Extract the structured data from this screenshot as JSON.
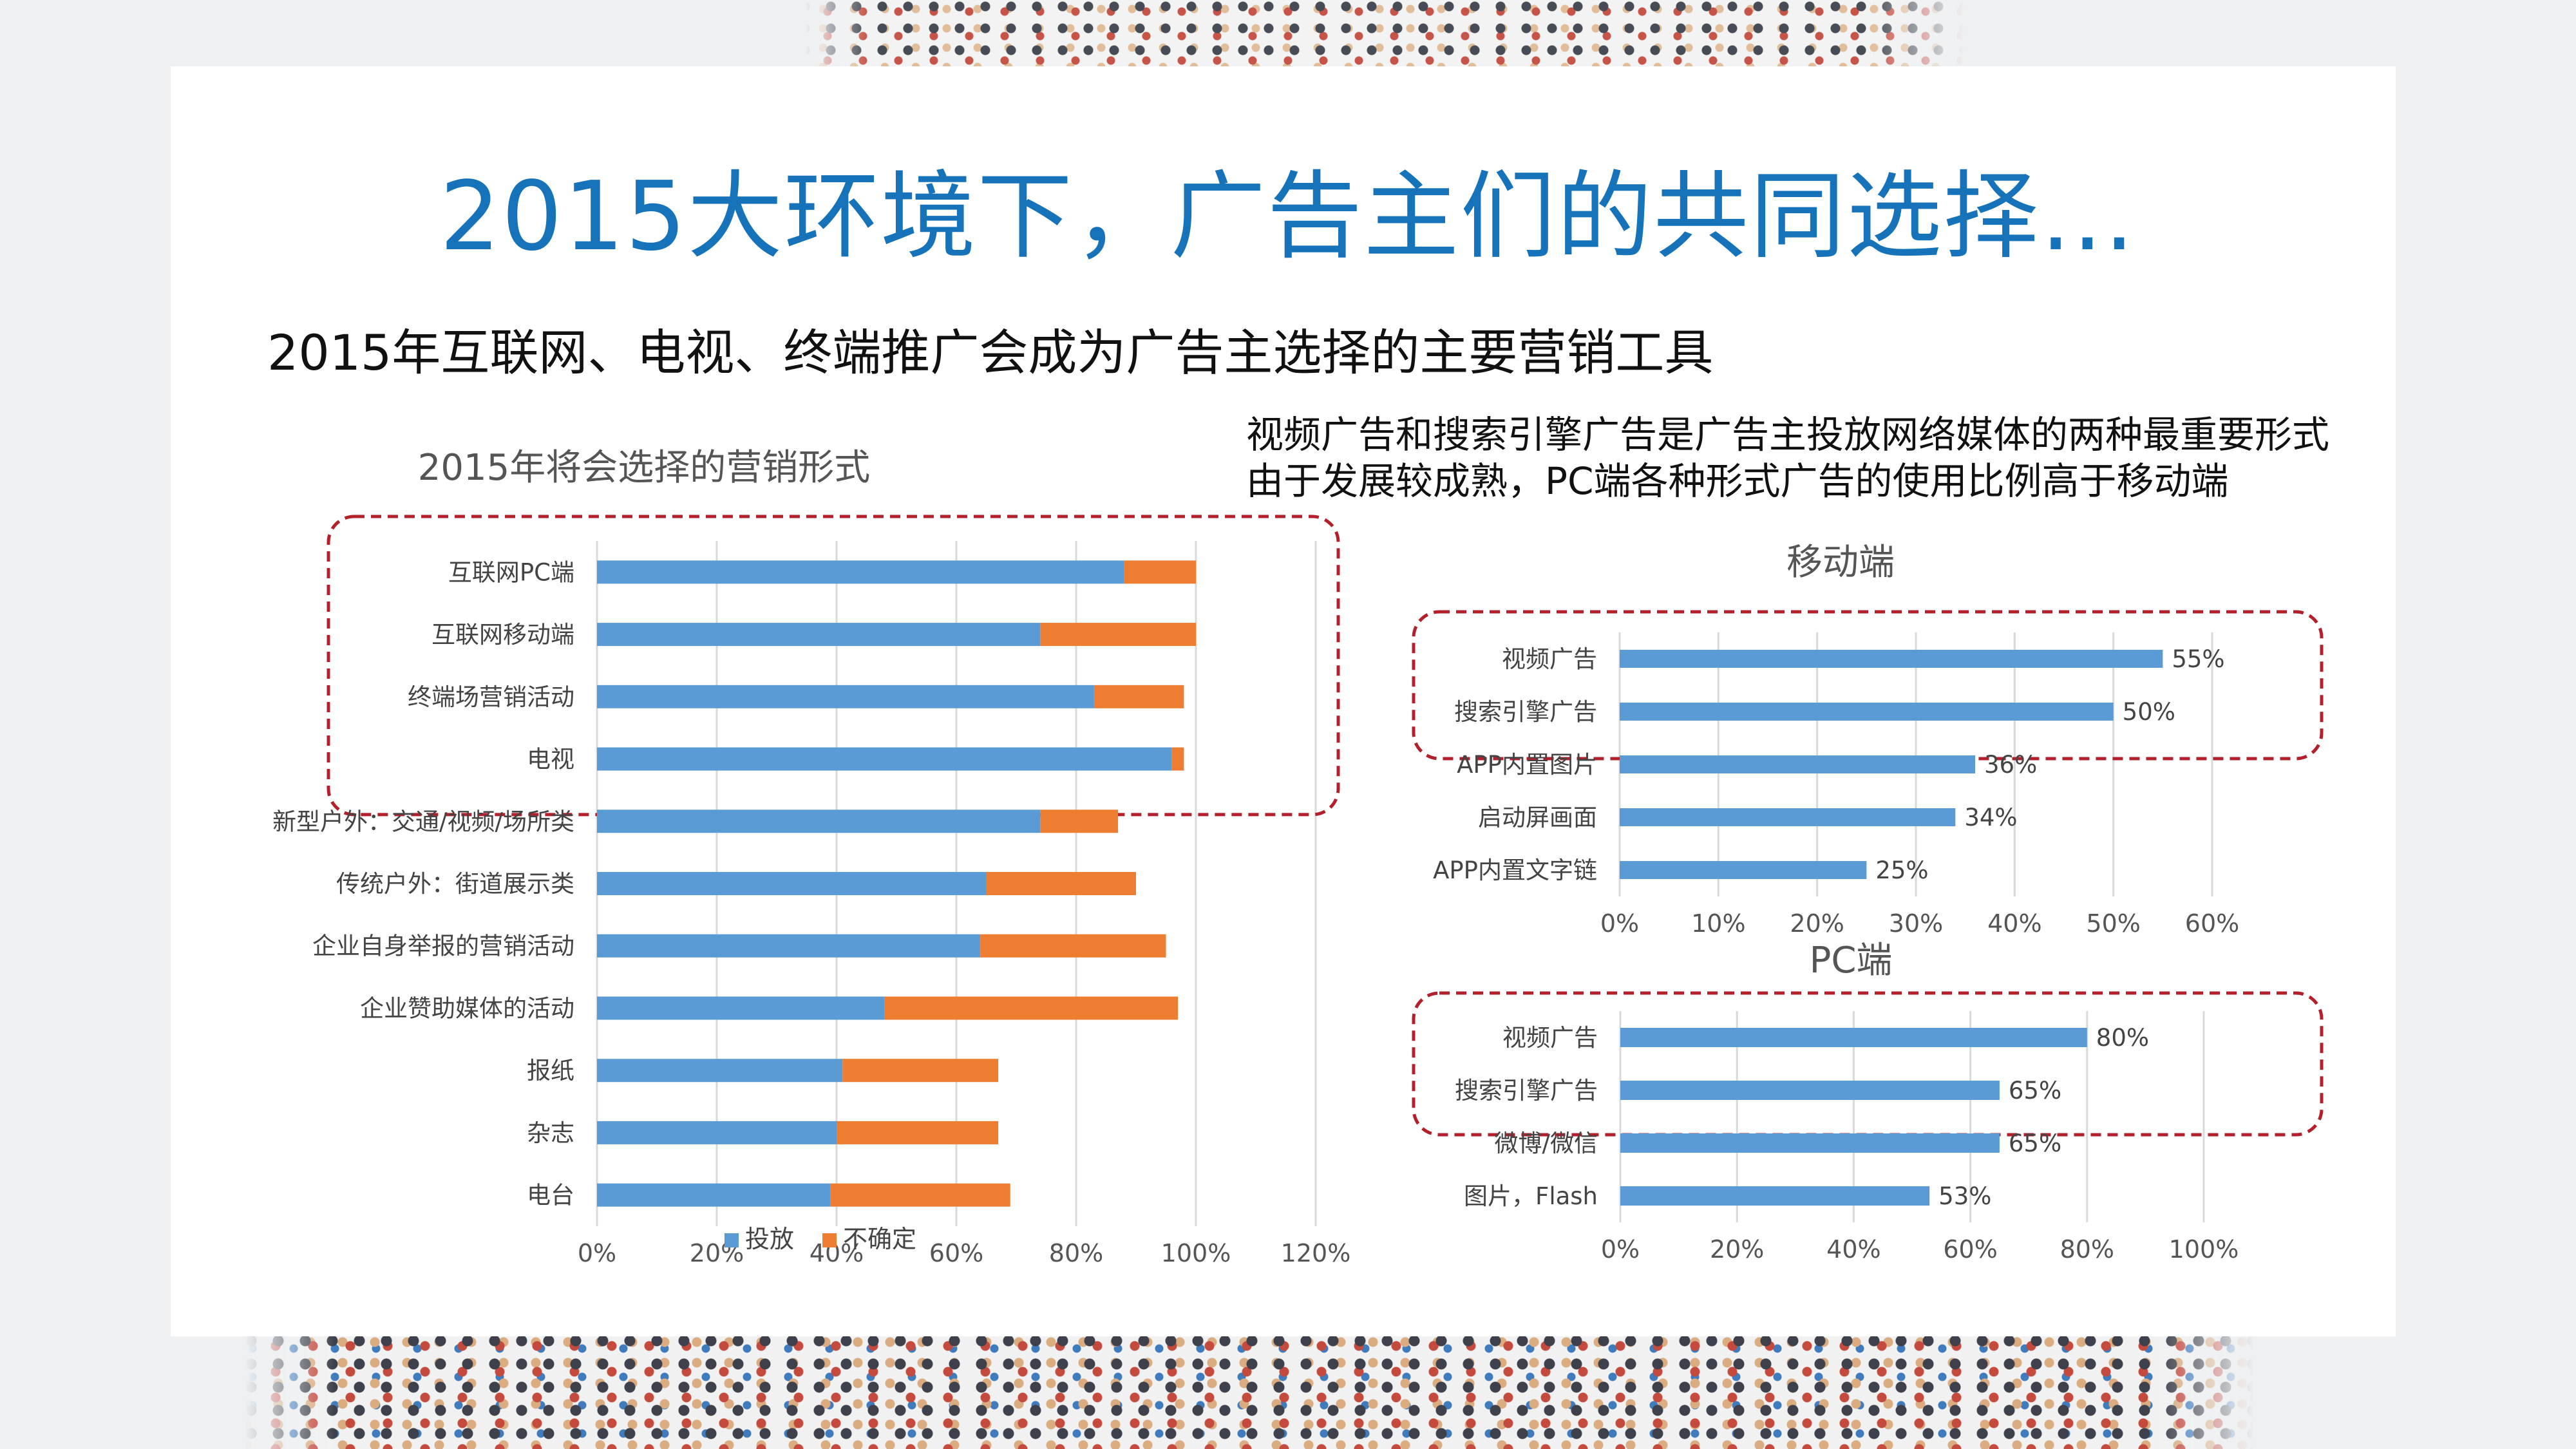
{
  "title": "2015大环境下，广告主们的共同选择…",
  "subtitle": "2015年互联网、电视、终端推广会成为广告主选择的主要营销工具",
  "notes": [
    "视频广告和搜索引擎广告是广告主投放网络媒体的两种最重要形式",
    "由于发展较成熟，PC端各种形式广告的使用比例高于移动端"
  ],
  "colors": {
    "title": "#1672b9",
    "series_blue": "#5b9bd5",
    "series_orange": "#ed7d31",
    "highlight_border": "#b3202c",
    "gridline": "#d9d9d9"
  },
  "chart_data": [
    {
      "type": "bar",
      "orientation": "horizontal",
      "stacked": true,
      "title": "2015年将会选择的营销形式",
      "categories": [
        "互联网PC端",
        "互联网移动端",
        "终端场营销活动",
        "电视",
        "新型户外：交通/视频/场所类",
        "传统户外：街道展示类",
        "企业自身举报的营销活动",
        "企业赞助媒体的活动",
        "报纸",
        "杂志",
        "电台"
      ],
      "series": [
        {
          "name": "投放",
          "values": [
            88,
            74,
            83,
            96,
            74,
            65,
            64,
            48,
            41,
            40,
            39
          ]
        },
        {
          "name": "不确定",
          "values": [
            12,
            26,
            15,
            2,
            13,
            25,
            31,
            49,
            26,
            27,
            30
          ]
        }
      ],
      "xlim": [
        0,
        120
      ],
      "xticks": [
        "0%",
        "20%",
        "40%",
        "60%",
        "80%",
        "100%",
        "120%"
      ],
      "legend_position": "bottom",
      "grid": true,
      "highlighted_categories": [
        "互联网PC端",
        "互联网移动端",
        "终端场营销活动",
        "电视"
      ]
    },
    {
      "type": "bar",
      "orientation": "horizontal",
      "title": "移动端",
      "categories": [
        "视频广告",
        "搜索引擎广告",
        "APP内置图片",
        "启动屏画面",
        "APP内置文字链"
      ],
      "values": [
        55,
        50,
        36,
        34,
        25
      ],
      "value_labels": [
        "55%",
        "50%",
        "36%",
        "34%",
        "25%"
      ],
      "xlim": [
        0,
        60
      ],
      "xticks": [
        "0%",
        "10%",
        "20%",
        "30%",
        "40%",
        "50%",
        "60%"
      ],
      "grid": true,
      "highlighted_categories": [
        "视频广告",
        "搜索引擎广告"
      ]
    },
    {
      "type": "bar",
      "orientation": "horizontal",
      "title": "PC端",
      "categories": [
        "视频广告",
        "搜索引擎广告",
        "微博/微信",
        "图片，Flash"
      ],
      "values": [
        80,
        65,
        65,
        53
      ],
      "value_labels": [
        "80%",
        "65%",
        "65%",
        "53%"
      ],
      "xlim": [
        0,
        100
      ],
      "xticks": [
        "0%",
        "20%",
        "40%",
        "60%",
        "80%",
        "100%"
      ],
      "grid": true,
      "highlighted_categories": [
        "视频广告",
        "搜索引擎广告"
      ]
    }
  ]
}
